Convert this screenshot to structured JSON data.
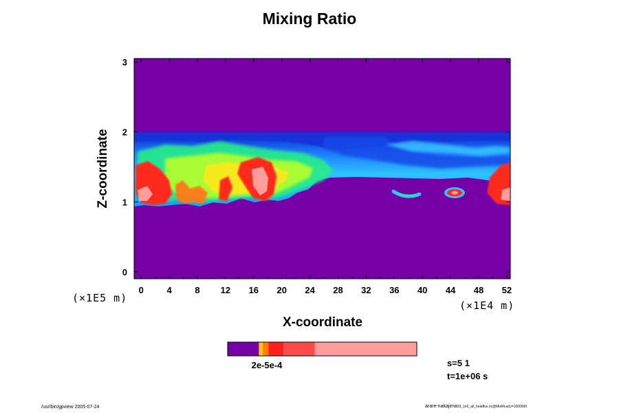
{
  "chart_data": {
    "type": "heatmap",
    "title": "Mixing Ratio",
    "xlabel": "X-coordinate",
    "ylabel": "Z-coordinate",
    "x_unit_label": "(×1E4 m)",
    "y_unit_label": "(×1E5 m)",
    "xlim": [
      -1,
      52.5
    ],
    "ylim": [
      -0.1,
      3.05
    ],
    "x_ticks": [
      "0",
      "4",
      "8",
      "12",
      "16",
      "20",
      "24",
      "28",
      "32",
      "36",
      "40",
      "44",
      "48",
      "52"
    ],
    "y_ticks": [
      "0",
      "1",
      "2",
      "3"
    ],
    "grid": false,
    "background_color": "#7400a6",
    "colorbar": {
      "label_text": "2e-5e-4",
      "colors": [
        "#7400a6",
        "#ffb000",
        "#ff8000",
        "#ff2020",
        "#ff4a4a",
        "#ff9c9c"
      ]
    },
    "annotations": [
      "s=5 1",
      "t=1e+06 s"
    ],
    "footer_left": "/usr/bin/gpview 2005-07-24",
    "footer_right_main": "arare-nakajima",
    "footer_right_small": "03_1e6_all_heatflux.nc@MixRt,ad,t=1000000"
  }
}
